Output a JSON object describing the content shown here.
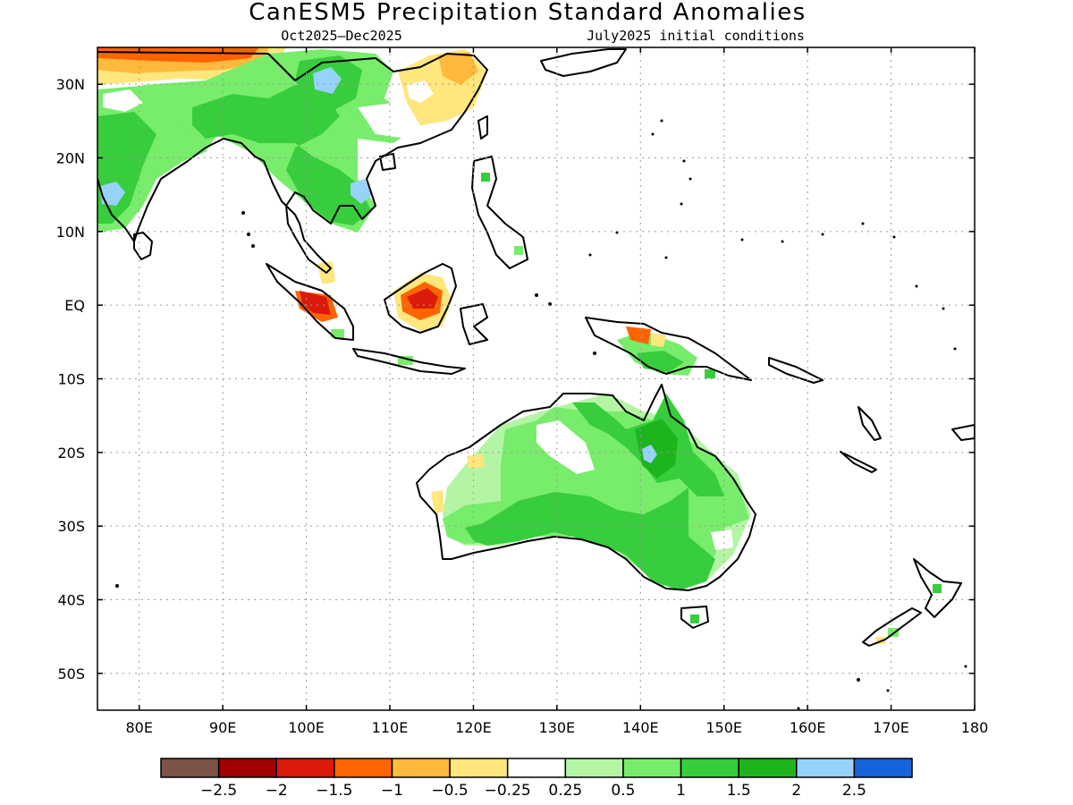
{
  "title": "CanESM5 Precipitation Standard Anomalies",
  "subtitle_left": "Oct2025–Dec2025",
  "subtitle_right": "July2025 initial conditions",
  "lat_ticks": [
    {
      "value": 30,
      "label": "30N"
    },
    {
      "value": 20,
      "label": "20N"
    },
    {
      "value": 10,
      "label": "10N"
    },
    {
      "value": 0,
      "label": "EQ"
    },
    {
      "value": -10,
      "label": "10S"
    },
    {
      "value": -20,
      "label": "20S"
    },
    {
      "value": -30,
      "label": "30S"
    },
    {
      "value": -40,
      "label": "40S"
    },
    {
      "value": -50,
      "label": "50S"
    }
  ],
  "lon_ticks": [
    {
      "value": 80,
      "label": "80E"
    },
    {
      "value": 90,
      "label": "90E"
    },
    {
      "value": 100,
      "label": "100E"
    },
    {
      "value": 110,
      "label": "110E"
    },
    {
      "value": 120,
      "label": "120E"
    },
    {
      "value": 130,
      "label": "130E"
    },
    {
      "value": 140,
      "label": "140E"
    },
    {
      "value": 150,
      "label": "150E"
    },
    {
      "value": 160,
      "label": "160E"
    },
    {
      "value": 170,
      "label": "170E"
    },
    {
      "value": 180,
      "label": "180"
    }
  ],
  "colorbar": {
    "colors": [
      "#7b5447",
      "#a00000",
      "#dc1a0a",
      "#ff6400",
      "#ffb93c",
      "#ffe67d",
      "#ffffff",
      "#b4f5a5",
      "#78ec6b",
      "#37cd3d",
      "#1eb41e",
      "#96d2fa",
      "#1664dc"
    ],
    "labels": [
      "−2.5",
      "−2",
      "−1.5",
      "−1",
      "−0.5",
      "−0.25",
      "0.25",
      "0.5",
      "1",
      "1.5",
      "2",
      "2.5"
    ]
  }
}
